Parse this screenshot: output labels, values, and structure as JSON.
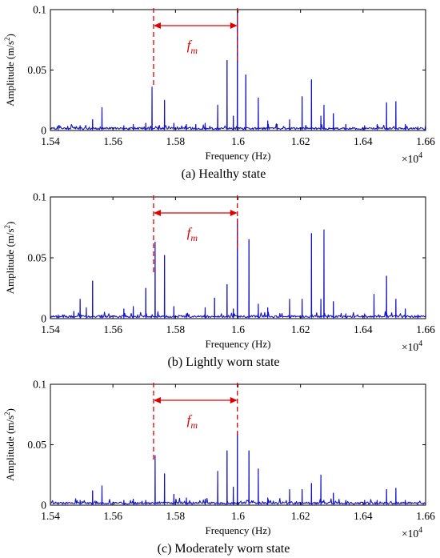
{
  "colors": {
    "signal": "#1414c8",
    "annotation": "#e00000",
    "axis": "#000000"
  },
  "chart_data": [
    {
      "type": "line",
      "caption": "(a) Healthy state",
      "xlabel": "Frequency  (Hz)",
      "ylabel": "Amplitude  (m/s",
      "ylabel_sup": "2",
      "ylabel_end": ")",
      "x_multiplier": "×10",
      "x_multiplier_exp": "4",
      "xlim": [
        1.54,
        1.66
      ],
      "ylim": [
        0,
        0.1
      ],
      "xticks": [
        "1.54",
        "1.56",
        "1.58",
        "1.6",
        "1.62",
        "1.64",
        "1.66"
      ],
      "yticks": [
        "0",
        "0.05",
        "0.1"
      ],
      "annotation": {
        "label": "f",
        "sub": "m",
        "from": 1.573,
        "to": 1.5998
      },
      "series": [
        {
          "peaks": [
            [
              1.5425,
              0.003
            ],
            [
              1.5495,
              0.004
            ],
            [
              1.5535,
              0.009
            ],
            [
              1.5565,
              0.019
            ],
            [
              1.5635,
              0.004
            ],
            [
              1.5665,
              0.005
            ],
            [
              1.5705,
              0.006
            ],
            [
              1.5725,
              0.036
            ],
            [
              1.5745,
              0.003
            ],
            [
              1.5765,
              0.025
            ],
            [
              1.5795,
              0.006
            ],
            [
              1.5835,
              0.005
            ],
            [
              1.5865,
              0.005
            ],
            [
              1.5895,
              0.006
            ],
            [
              1.5935,
              0.021
            ],
            [
              1.5965,
              0.058
            ],
            [
              1.5985,
              0.012
            ],
            [
              1.5998,
              0.1
            ],
            [
              1.6025,
              0.046
            ],
            [
              1.6065,
              0.027
            ],
            [
              1.6095,
              0.008
            ],
            [
              1.6125,
              0.005
            ],
            [
              1.6165,
              0.009
            ],
            [
              1.6205,
              0.028
            ],
            [
              1.6235,
              0.042
            ],
            [
              1.6265,
              0.012
            ],
            [
              1.6275,
              0.021
            ],
            [
              1.6305,
              0.014
            ],
            [
              1.6345,
              0.005
            ],
            [
              1.6405,
              0.004
            ],
            [
              1.6445,
              0.005
            ],
            [
              1.6475,
              0.023
            ],
            [
              1.6505,
              0.024
            ],
            [
              1.6535,
              0.005
            ],
            [
              1.6575,
              0.003
            ]
          ]
        }
      ]
    },
    {
      "type": "line",
      "caption": "(b) Lightly worn state",
      "xlabel": "Frequency  (Hz)",
      "ylabel": "Amplitude  (m/s",
      "ylabel_sup": "2",
      "ylabel_end": ")",
      "x_multiplier": "×10",
      "x_multiplier_exp": "4",
      "xlim": [
        1.54,
        1.66
      ],
      "ylim": [
        0,
        0.1
      ],
      "xticks": [
        "1.54",
        "1.56",
        "1.58",
        "1.6",
        "1.62",
        "1.64",
        "1.66"
      ],
      "yticks": [
        "0",
        "0.05",
        "0.1"
      ],
      "annotation": {
        "label": "f",
        "sub": "m",
        "from": 1.573,
        "to": 1.5998
      },
      "series": [
        {
          "peaks": [
            [
              1.5425,
              0.003
            ],
            [
              1.5475,
              0.006
            ],
            [
              1.5495,
              0.016
            ],
            [
              1.5515,
              0.009
            ],
            [
              1.5535,
              0.031
            ],
            [
              1.5565,
              0.003
            ],
            [
              1.5635,
              0.008
            ],
            [
              1.5665,
              0.01
            ],
            [
              1.5705,
              0.025
            ],
            [
              1.5735,
              0.063
            ],
            [
              1.5765,
              0.052
            ],
            [
              1.5795,
              0.01
            ],
            [
              1.5835,
              0.004
            ],
            [
              1.5895,
              0.009
            ],
            [
              1.5925,
              0.017
            ],
            [
              1.5965,
              0.028
            ],
            [
              1.5985,
              0.008
            ],
            [
              1.5998,
              0.082
            ],
            [
              1.6035,
              0.065
            ],
            [
              1.6065,
              0.012
            ],
            [
              1.6095,
              0.009
            ],
            [
              1.6165,
              0.016
            ],
            [
              1.6205,
              0.016
            ],
            [
              1.6235,
              0.07
            ],
            [
              1.6265,
              0.016
            ],
            [
              1.6275,
              0.073
            ],
            [
              1.6305,
              0.014
            ],
            [
              1.6345,
              0.004
            ],
            [
              1.6405,
              0.004
            ],
            [
              1.6435,
              0.02
            ],
            [
              1.6475,
              0.035
            ],
            [
              1.6505,
              0.016
            ],
            [
              1.6535,
              0.008
            ],
            [
              1.6575,
              0.003
            ]
          ]
        }
      ]
    },
    {
      "type": "line",
      "caption": "(c) Moderately worn state",
      "xlabel": "Frequency  (Hz)",
      "ylabel": "Amplitude  (m/s",
      "ylabel_sup": "2",
      "ylabel_end": ")",
      "x_multiplier": "×10",
      "x_multiplier_exp": "4",
      "xlim": [
        1.54,
        1.66
      ],
      "ylim": [
        0,
        0.1
      ],
      "xticks": [
        "1.54",
        "1.56",
        "1.58",
        "1.6",
        "1.62",
        "1.64",
        "1.66"
      ],
      "yticks": [
        "0",
        "0.05",
        "0.1"
      ],
      "annotation": {
        "label": "f",
        "sub": "m",
        "from": 1.573,
        "to": 1.5998
      },
      "series": [
        {
          "peaks": [
            [
              1.5425,
              0.002
            ],
            [
              1.5495,
              0.004
            ],
            [
              1.5535,
              0.012
            ],
            [
              1.5565,
              0.016
            ],
            [
              1.5635,
              0.004
            ],
            [
              1.5665,
              0.005
            ],
            [
              1.5705,
              0.004
            ],
            [
              1.5735,
              0.041
            ],
            [
              1.5765,
              0.026
            ],
            [
              1.5795,
              0.009
            ],
            [
              1.5835,
              0.006
            ],
            [
              1.5895,
              0.005
            ],
            [
              1.5935,
              0.028
            ],
            [
              1.5965,
              0.045
            ],
            [
              1.5985,
              0.015
            ],
            [
              1.5998,
              0.06
            ],
            [
              1.6035,
              0.045
            ],
            [
              1.6065,
              0.03
            ],
            [
              1.6095,
              0.006
            ],
            [
              1.6165,
              0.013
            ],
            [
              1.6205,
              0.013
            ],
            [
              1.6235,
              0.018
            ],
            [
              1.6265,
              0.025
            ],
            [
              1.6305,
              0.01
            ],
            [
              1.6345,
              0.004
            ],
            [
              1.6405,
              0.004
            ],
            [
              1.6445,
              0.004
            ],
            [
              1.6475,
              0.013
            ],
            [
              1.6505,
              0.014
            ],
            [
              1.6535,
              0.004
            ],
            [
              1.6575,
              0.002
            ]
          ]
        }
      ]
    }
  ]
}
